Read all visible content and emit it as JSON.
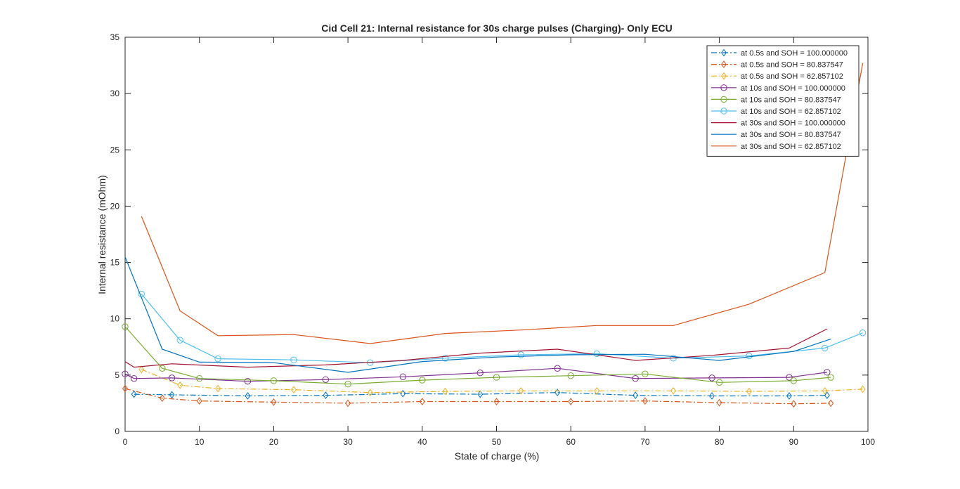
{
  "chart_data": {
    "type": "line",
    "title": "Cid Cell 21: Internal resistance for 30s charge pulses (Charging)- Only ECU",
    "xlabel": "State of charge (%)",
    "ylabel": "Internal resistance (mOhm)",
    "xlim": [
      0,
      100
    ],
    "ylim": [
      0,
      35
    ],
    "xticks": [
      "0",
      "10",
      "20",
      "30",
      "40",
      "50",
      "60",
      "70",
      "80",
      "90",
      "100"
    ],
    "yticks": [
      "0",
      "5",
      "10",
      "15",
      "20",
      "25",
      "30",
      "35"
    ],
    "grid": false,
    "legend_position": "top-right",
    "series": [
      {
        "name": "at 0.5s and SOH = 100.000000",
        "color": "#0072BD",
        "dash": "dashdot",
        "marker": "diamond",
        "x": [
          1.2,
          6.3,
          16.5,
          27.0,
          37.4,
          47.8,
          58.2,
          68.7,
          79.0,
          89.4,
          94.5
        ],
        "y": [
          3.3,
          3.25,
          3.15,
          3.2,
          3.35,
          3.3,
          3.45,
          3.2,
          3.15,
          3.15,
          3.2
        ]
      },
      {
        "name": "at 0.5s and SOH = 80.837547",
        "color": "#D95319",
        "dash": "dashdot",
        "marker": "diamond",
        "x": [
          0,
          5.0,
          10.0,
          20.0,
          30.0,
          40.0,
          50.0,
          60.0,
          70.0,
          80.0,
          90.0,
          95.0
        ],
        "y": [
          3.8,
          2.95,
          2.7,
          2.6,
          2.5,
          2.65,
          2.65,
          2.65,
          2.7,
          2.55,
          2.45,
          2.5
        ]
      },
      {
        "name": "at 0.5s and SOH = 62.857102",
        "color": "#EDB120",
        "dash": "dashdot",
        "marker": "diamond",
        "x": [
          2.2,
          7.4,
          12.5,
          22.7,
          33.0,
          43.1,
          53.3,
          63.5,
          73.8,
          84.0,
          94.2,
          99.3
        ],
        "y": [
          5.5,
          4.1,
          3.8,
          3.7,
          3.45,
          3.55,
          3.6,
          3.6,
          3.6,
          3.55,
          3.6,
          3.75
        ]
      },
      {
        "name": "at 10s and SOH = 100.000000",
        "color": "#7E2F8E",
        "dash": "solid",
        "marker": "circle",
        "x": [
          0,
          1.2,
          6.3,
          16.5,
          27.0,
          37.4,
          47.8,
          58.2,
          68.7,
          79.0,
          89.4,
          94.5
        ],
        "y": [
          5.1,
          4.7,
          4.75,
          4.45,
          4.6,
          4.85,
          5.2,
          5.6,
          4.7,
          4.75,
          4.8,
          5.25
        ]
      },
      {
        "name": "at 10s and SOH = 80.837547",
        "color": "#77AC30",
        "dash": "solid",
        "marker": "circle",
        "x": [
          0,
          5.0,
          10.0,
          20.0,
          30.0,
          40.0,
          50.0,
          60.0,
          70.0,
          80.0,
          90.0,
          95.0
        ],
        "y": [
          9.3,
          5.6,
          4.7,
          4.5,
          4.2,
          4.55,
          4.8,
          4.95,
          5.1,
          4.35,
          4.5,
          4.8
        ]
      },
      {
        "name": "at 10s and SOH = 62.857102",
        "color": "#4DBEEE",
        "dash": "solid",
        "marker": "circle",
        "x": [
          2.2,
          7.4,
          12.5,
          22.7,
          33.0,
          43.1,
          53.3,
          63.5,
          73.8,
          84.0,
          94.2,
          99.3
        ],
        "y": [
          12.2,
          8.1,
          6.45,
          6.35,
          6.1,
          6.5,
          6.8,
          6.9,
          6.5,
          6.7,
          7.4,
          8.75
        ]
      },
      {
        "name": "at 30s and SOH = 100.000000",
        "color": "#A2142F",
        "dash": "solid",
        "marker": "none",
        "x": [
          0,
          1.2,
          6.3,
          16.5,
          27.0,
          37.4,
          47.8,
          58.2,
          68.7,
          79.0,
          89.4,
          94.5
        ],
        "y": [
          6.2,
          5.7,
          6.0,
          5.7,
          5.9,
          6.3,
          6.95,
          7.3,
          6.3,
          6.75,
          7.4,
          9.1
        ]
      },
      {
        "name": "at 30s and SOH = 80.837547",
        "color": "#0072BD",
        "dash": "solid",
        "marker": "none",
        "x": [
          0,
          5.0,
          10.0,
          20.0,
          30.0,
          40.0,
          50.0,
          60.0,
          70.0,
          80.0,
          90.0,
          95.0
        ],
        "y": [
          15.5,
          7.3,
          6.15,
          6.1,
          5.25,
          6.2,
          6.6,
          6.8,
          6.85,
          6.3,
          7.1,
          8.2
        ]
      },
      {
        "name": "at 30s and SOH = 62.857102",
        "color": "#D95319",
        "dash": "solid",
        "marker": "none",
        "x": [
          2.2,
          7.4,
          12.5,
          22.7,
          33.0,
          43.1,
          53.3,
          63.5,
          73.8,
          84.0,
          94.2,
          99.3
        ],
        "y": [
          19.1,
          10.7,
          8.5,
          8.6,
          7.8,
          8.7,
          9.0,
          9.4,
          9.4,
          11.3,
          14.1,
          32.7
        ]
      }
    ]
  }
}
